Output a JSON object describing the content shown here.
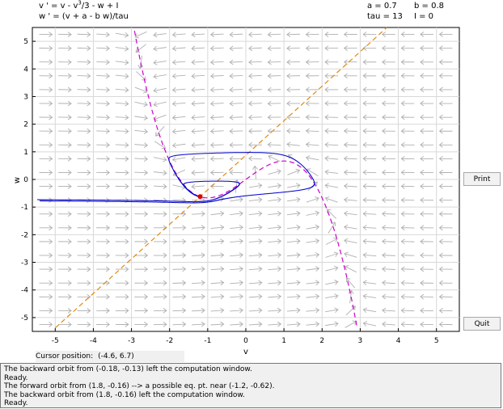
{
  "equations": {
    "v_prefix": "v ' = v - v",
    "v_exp": "3",
    "v_suffix": "/3 - w + I",
    "w_eq": "w ' = (v + a - b w)/tau"
  },
  "params": {
    "a": "a = 0.7",
    "b": "b = 0.8",
    "tau": "tau = 13",
    "I": "I = 0"
  },
  "buttons": {
    "print": "Print",
    "quit": "Quit"
  },
  "cursor": {
    "label": "Cursor position:",
    "value": "(-4.6, 6.7)"
  },
  "log": [
    "The backward orbit from (-0.18, -0.13) left the computation window.",
    "Ready.",
    "The forward orbit from (1.8, -0.16) --> a possible eq. pt. near (-1.2, -0.62).",
    "The backward orbit from (1.8, -0.16) left the computation window.",
    "Ready."
  ],
  "colors": {
    "v_nullcline": "#cc00cc",
    "w_nullcline": "#e08a10",
    "orbit": "#0000cc",
    "field": "#b0b0b0",
    "equilibrium": "#dd0000",
    "grid": "#d8d8d8"
  },
  "chart_data": {
    "type": "phase-plane",
    "xlabel": "v",
    "ylabel": "w",
    "xlim": [
      -5.6,
      5.6
    ],
    "ylim": [
      -5.5,
      5.5
    ],
    "xticks": [
      -5,
      -4,
      -3,
      -2,
      -1,
      0,
      1,
      2,
      3,
      4,
      5
    ],
    "yticks": [
      -5,
      -4,
      -3,
      -2,
      -1,
      0,
      1,
      2,
      3,
      4,
      5
    ],
    "grid": true,
    "parameters": {
      "a": 0.7,
      "b": 0.8,
      "tau": 13,
      "I": 0
    },
    "equilibrium": [
      -1.2,
      -0.62
    ],
    "orbits": [
      {
        "start": [
          -0.18,
          -0.13
        ]
      },
      {
        "start": [
          1.8,
          -0.16
        ]
      }
    ]
  }
}
